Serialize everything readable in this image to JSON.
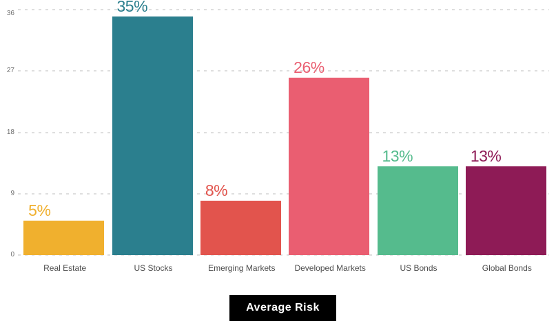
{
  "chart_data": {
    "type": "bar",
    "title": "Average Risk",
    "categories": [
      "Real Estate",
      "US Stocks",
      "Emerging Markets",
      "Developed Markets",
      "US Bonds",
      "Global Bonds"
    ],
    "values": [
      5,
      35,
      8,
      26,
      13,
      13
    ],
    "value_labels": [
      "5%",
      "35%",
      "8%",
      "26%",
      "13%",
      "13%"
    ],
    "bar_colors": [
      "#f0b02e",
      "#2b7f8e",
      "#e2544d",
      "#ea5e71",
      "#55bb8d",
      "#8e1b56"
    ],
    "xlabel": "",
    "ylabel": "",
    "ylim": [
      0,
      36
    ],
    "yticks": [
      0,
      9,
      18,
      27,
      36
    ],
    "grid": "horizontal-dashed",
    "legend": "none"
  },
  "title_banner": {
    "label": "Average Risk",
    "background": "#000000",
    "text_color": "#ffffff"
  },
  "colors": {
    "background": "#ffffff",
    "gridline": "#dedede",
    "tick_label": "#6f6f6f",
    "category_label": "#4d4d4d"
  }
}
